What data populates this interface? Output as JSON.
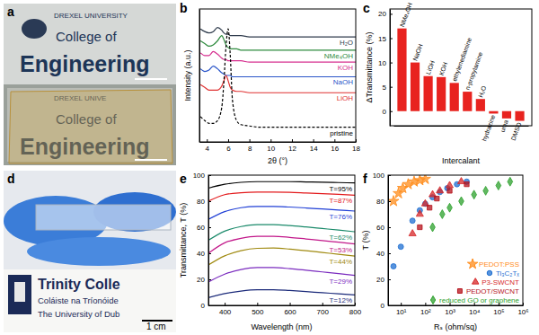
{
  "chart_data": [
    {
      "type": "photo",
      "title": "a",
      "annotations": [
        "DREXEL UNIVERSITY",
        "College of",
        "Engineering",
        "DREXEL UNIVE",
        "College of",
        "Engineering"
      ]
    },
    {
      "type": "line",
      "title": "b",
      "xlabel": "2θ (°)",
      "ylabel": "Intensity (a.u.)",
      "x": [
        3.4,
        3.8,
        4.2,
        4.6,
        5.0,
        5.4,
        5.6,
        5.8,
        6.0,
        6.2,
        6.4,
        6.8,
        7.2,
        8,
        9,
        10,
        11,
        12,
        13,
        14,
        15,
        16,
        17,
        18
      ],
      "xlim": [
        3.3,
        18
      ],
      "xticks": [
        4,
        6,
        8,
        10,
        12,
        14,
        16,
        18
      ],
      "ylim": [
        0,
        10
      ],
      "tick_labels": "x",
      "grid": false,
      "series": [
        {
          "name": "H₂O",
          "color": "#2f3b4c",
          "values": [
            8.5,
            8.3,
            8.2,
            8.3,
            8.6,
            8.4,
            8.2,
            8.1,
            8.1,
            8.0,
            8.0,
            8.0,
            8.0,
            7.9,
            7.9,
            7.9,
            7.9,
            7.9,
            7.9,
            7.9,
            7.9,
            7.9,
            7.9,
            7.9
          ]
        },
        {
          "name": "NMe₄OH",
          "color": "#2e8b3e",
          "values": [
            7.6,
            7.4,
            7.2,
            7.3,
            7.6,
            8.0,
            7.7,
            7.3,
            7.1,
            7.0,
            7.0,
            7.0,
            6.9,
            6.9,
            6.9,
            6.9,
            6.9,
            6.9,
            6.9,
            6.9,
            6.9,
            6.9,
            6.9,
            6.9
          ]
        },
        {
          "name": "KOH",
          "color": "#d62f8f",
          "values": [
            6.7,
            6.5,
            6.5,
            6.8,
            6.6,
            6.3,
            6.2,
            6.2,
            6.1,
            6.1,
            6.1,
            6.1,
            6.1,
            6.0,
            6.0,
            6.0,
            6.0,
            6.0,
            6.0,
            6.0,
            6.0,
            6.0,
            6.0,
            6.0
          ]
        },
        {
          "name": "NaOH",
          "color": "#2a55c9",
          "values": [
            5.5,
            5.3,
            5.4,
            5.7,
            5.5,
            5.2,
            5.1,
            5.0,
            5.0,
            5.0,
            4.9,
            4.9,
            4.9,
            4.9,
            4.9,
            4.9,
            4.9,
            4.9,
            4.9,
            4.9,
            4.9,
            4.9,
            4.9,
            4.9
          ]
        },
        {
          "name": "LiOH",
          "color": "#e03131",
          "values": [
            4.3,
            4.1,
            3.9,
            3.9,
            3.9,
            4.2,
            4.6,
            5.0,
            4.6,
            4.1,
            3.9,
            3.8,
            3.8,
            3.7,
            3.7,
            3.7,
            3.7,
            3.7,
            3.7,
            3.7,
            3.7,
            3.7,
            3.7,
            3.7
          ]
        },
        {
          "name": "pristine",
          "color": "#000000",
          "line_style": "dashed",
          "values": [
            1.9,
            1.6,
            1.4,
            1.4,
            1.6,
            2.6,
            4.5,
            7.2,
            8.5,
            6.5,
            3.2,
            1.6,
            1.3,
            1.2,
            1.1,
            1.1,
            1.1,
            1.1,
            1.1,
            1.1,
            1.1,
            1.1,
            1.1,
            1.1
          ]
        }
      ]
    },
    {
      "type": "bar",
      "title": "c",
      "xlabel": "Intercalant",
      "ylabel": "ΔTransmittance (%)",
      "categories": [
        "NMe₄OH",
        "NaOH",
        "LiOH",
        "KOH",
        "ethylenediamine",
        "n-propylamine",
        "H₂O",
        "hydrazine",
        "urea",
        "DMSO"
      ],
      "values": [
        17,
        10,
        7.2,
        7,
        5.8,
        4,
        2.5,
        -0.5,
        -1.5,
        -2
      ],
      "color": "#e8231f",
      "ylim": [
        -3,
        21
      ],
      "yticks": [
        0,
        5,
        10,
        15,
        20
      ],
      "tick_labels": "y",
      "grid": false
    },
    {
      "type": "photo",
      "title": "d",
      "annotations": [
        "Trinity Colle",
        "Coláiste na Tríonóide",
        "The University of Dub",
        "1 cm"
      ]
    },
    {
      "type": "line",
      "title": "e",
      "xlabel": "Wavelength (nm)",
      "ylabel": "Transmittance, T (%)",
      "x": [
        350,
        400,
        450,
        500,
        550,
        600,
        650,
        700,
        750,
        800
      ],
      "xlim": [
        350,
        800
      ],
      "xticks": [
        400,
        500,
        600,
        700,
        800
      ],
      "ylim": [
        0,
        100
      ],
      "yticks": [
        0,
        20,
        40,
        60,
        80,
        100
      ],
      "grid": false,
      "series": [
        {
          "name": "T=95%",
          "color": "#000000",
          "values": [
            90,
            93,
            94.5,
            95,
            95,
            95,
            94.8,
            94.6,
            94.3,
            94
          ]
        },
        {
          "name": "T=87%",
          "color": "#e31a1c",
          "values": [
            80,
            85,
            86.5,
            87,
            87,
            86.8,
            86.3,
            85.8,
            85.2,
            84.6
          ]
        },
        {
          "name": "T=76%",
          "color": "#1f3fd6",
          "values": [
            66,
            72,
            75,
            76,
            76,
            75.5,
            74.8,
            74,
            73.2,
            72.4
          ]
        },
        {
          "name": "T=62%",
          "color": "#1a8a6a",
          "values": [
            50,
            57,
            60.5,
            62,
            62,
            61.3,
            60.2,
            59,
            57.8,
            56.5
          ]
        },
        {
          "name": "T=53%",
          "color": "#c2188a",
          "values": [
            40,
            48,
            51.5,
            53,
            53,
            52.2,
            51,
            49.8,
            48.5,
            47.2
          ]
        },
        {
          "name": "T=44%",
          "color": "#a08a10",
          "values": [
            31,
            38,
            42,
            43.8,
            44,
            43.2,
            42,
            40.6,
            39.2,
            37.8
          ]
        },
        {
          "name": "T=29%",
          "color": "#7b2cbf",
          "values": [
            18,
            24,
            27.5,
            29,
            29,
            28.2,
            27,
            25.7,
            24.4,
            23
          ]
        },
        {
          "name": "T=12%",
          "color": "#1b2a7a",
          "values": [
            6,
            9,
            11,
            12,
            12,
            11.4,
            10.6,
            9.7,
            8.9,
            8
          ]
        }
      ]
    },
    {
      "type": "scatter",
      "title": "f",
      "xlabel": "Rₛ (ohm/sq)",
      "ylabel": "T (%)",
      "log": "x",
      "xlim": [
        3,
        1000000
      ],
      "xticks": [
        {
          "value": 10,
          "label": "10¹"
        },
        {
          "value": 100,
          "label": "10²"
        },
        {
          "value": 1000,
          "label": "10³"
        },
        {
          "value": 10000,
          "label": "10⁴"
        },
        {
          "value": 100000,
          "label": "10⁵"
        },
        {
          "value": 1000000,
          "label": "10⁶"
        }
      ],
      "ylim": [
        0,
        100
      ],
      "yticks": [
        0,
        20,
        40,
        60,
        80,
        100
      ],
      "grid": false,
      "legend": "lower right",
      "series": [
        {
          "name": "PEDOT:PSS",
          "color": "#ff8c1a",
          "marker": "star",
          "x": [
            5,
            8,
            12,
            20,
            35,
            60,
            100
          ],
          "values": [
            80,
            86,
            90,
            93,
            95,
            96,
            97
          ]
        },
        {
          "name": "Ti₃C₂Tₓ",
          "color": "#1f6fd1",
          "marker": "circle",
          "x": [
            5,
            10,
            30,
            60,
            100,
            200,
            400,
            800,
            2000,
            5000
          ],
          "values": [
            30,
            45,
            65,
            73,
            78,
            83,
            87,
            90,
            93,
            95
          ]
        },
        {
          "name": "P3-SWCNT",
          "color": "#d62728",
          "marker": "triangle",
          "x": [
            30,
            60,
            100,
            200,
            400,
            1000,
            3000
          ],
          "values": [
            55,
            70,
            78,
            85,
            88,
            92,
            95
          ]
        },
        {
          "name": "PEDOT/SWCNT",
          "color": "#b5121b",
          "marker": "square",
          "x": [
            60,
            150,
            300,
            1000,
            5000
          ],
          "values": [
            60,
            75,
            82,
            88,
            93
          ]
        },
        {
          "name": "reduced GO or graphene",
          "color": "#2ca02c",
          "marker": "diamond",
          "x": [
            200,
            500,
            1000,
            3000,
            10000,
            30000,
            100000,
            300000
          ],
          "values": [
            60,
            70,
            75,
            80,
            85,
            88,
            92,
            95
          ]
        }
      ]
    }
  ]
}
